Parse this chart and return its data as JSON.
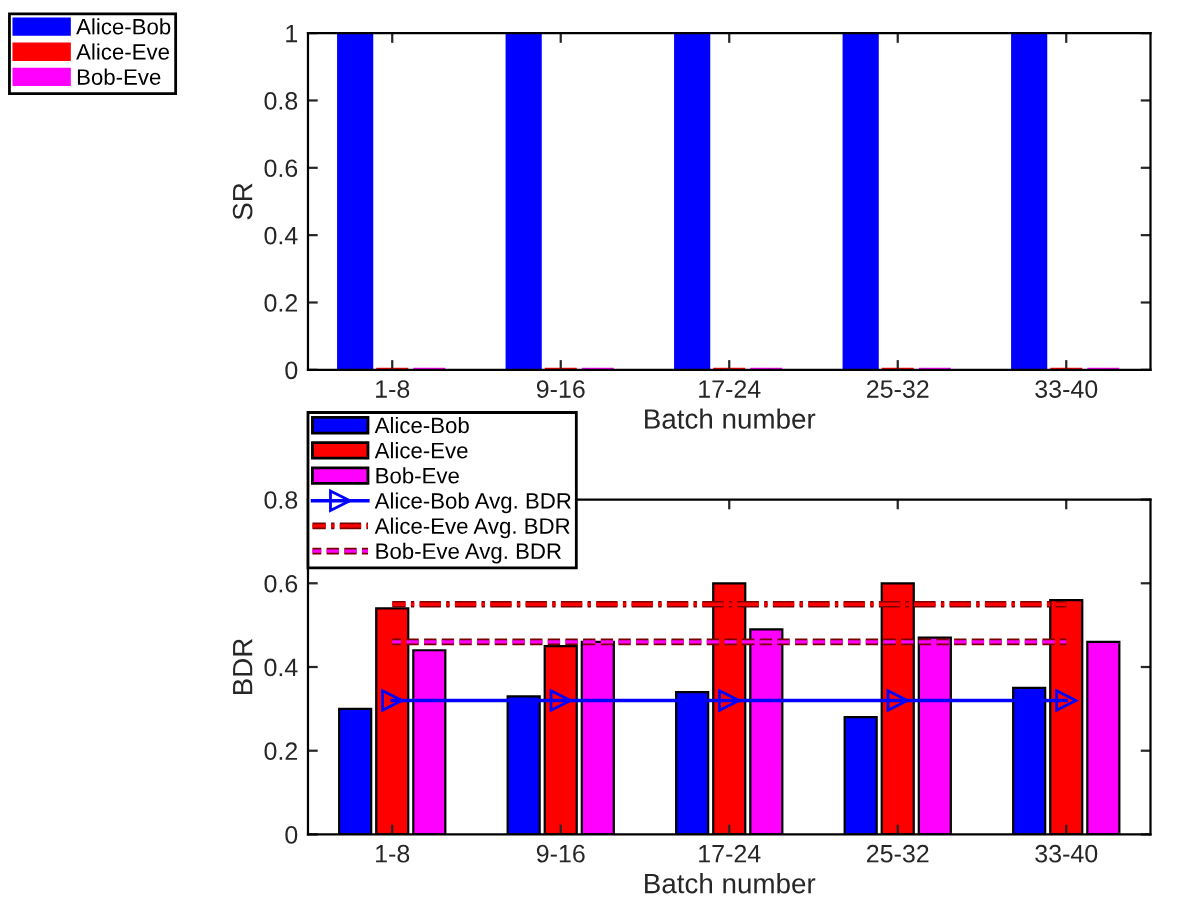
{
  "chart_data": [
    {
      "type": "bar",
      "categories": [
        "1-8",
        "9-16",
        "17-24",
        "25-32",
        "33-40"
      ],
      "xlabel": "Batch number",
      "ylabel": "SR",
      "ylim": [
        0,
        1
      ],
      "yticks": [
        0,
        0.2,
        0.4,
        0.6,
        0.8,
        1
      ],
      "legend": "top left",
      "grid": false,
      "series": [
        {
          "name": "Alice-Bob",
          "color": "#0000ff",
          "values": [
            1,
            1,
            1,
            1,
            1
          ]
        },
        {
          "name": "Alice-Eve",
          "color": "#ff0000",
          "values": [
            0,
            0,
            0,
            0,
            0
          ]
        },
        {
          "name": "Bob-Eve",
          "color": "#ff00ff",
          "values": [
            0,
            0,
            0,
            0,
            0
          ]
        }
      ]
    },
    {
      "type": "bar",
      "categories": [
        "1-8",
        "9-16",
        "17-24",
        "25-32",
        "33-40"
      ],
      "xlabel": "Batch number",
      "ylabel": "BDR",
      "ylim": [
        0,
        0.8
      ],
      "yticks": [
        0,
        0.2,
        0.4,
        0.6,
        0.8
      ],
      "legend": "top left",
      "grid": false,
      "series": [
        {
          "name": "Alice-Bob",
          "color": "#0000ff",
          "values": [
            0.3,
            0.33,
            0.34,
            0.28,
            0.35
          ]
        },
        {
          "name": "Alice-Eve",
          "color": "#ff0000",
          "values": [
            0.54,
            0.45,
            0.6,
            0.6,
            0.56
          ]
        },
        {
          "name": "Bob-Eve",
          "color": "#ff00ff",
          "values": [
            0.44,
            0.46,
            0.49,
            0.47,
            0.46
          ]
        },
        {
          "name": "Alice-Bob Avg. BDR",
          "type": "line",
          "color": "#0000ff",
          "marker": "triangle",
          "line_style": "solid",
          "values": [
            0.32,
            0.32,
            0.32,
            0.32,
            0.32
          ]
        },
        {
          "name": "Alice-Eve Avg. BDR",
          "type": "line",
          "color": "#ff0000",
          "marker": "none",
          "line_style": "dashdot",
          "values": [
            0.55,
            0.55,
            0.55,
            0.55,
            0.55
          ]
        },
        {
          "name": "Bob-Eve Avg. BDR",
          "type": "line",
          "color": "#ff00ff",
          "marker": "none",
          "line_style": "dashed",
          "values": [
            0.46,
            0.46,
            0.46,
            0.46,
            0.46
          ]
        }
      ]
    }
  ]
}
